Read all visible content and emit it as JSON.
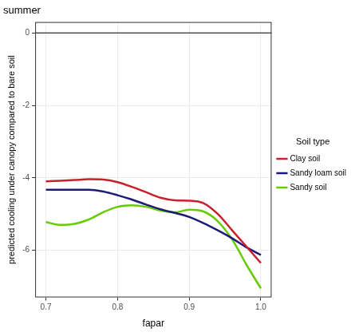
{
  "chart_data": {
    "type": "line",
    "title": "summer",
    "x_label": "fapar",
    "y_label": "predicted cooling under canopy compared to bare soil",
    "legend_title": "Soil type",
    "legend": "right",
    "grid": true,
    "hline": 0,
    "x": [
      0.7,
      0.72,
      0.74,
      0.76,
      0.78,
      0.8,
      0.82,
      0.84,
      0.86,
      0.88,
      0.9,
      0.92,
      0.94,
      0.96,
      0.98,
      1.0
    ],
    "series": [
      {
        "name": "Clay soil",
        "color": "#c8202c",
        "values": [
          -4.1,
          -4.08,
          -4.06,
          -4.04,
          -4.05,
          -4.12,
          -4.25,
          -4.4,
          -4.55,
          -4.62,
          -4.63,
          -4.7,
          -5.0,
          -5.45,
          -5.9,
          -6.35
        ]
      },
      {
        "name": "Sandy loam soil",
        "color": "#1c1c78",
        "values": [
          -4.33,
          -4.33,
          -4.33,
          -4.33,
          -4.38,
          -4.48,
          -4.6,
          -4.74,
          -4.87,
          -4.97,
          -5.08,
          -5.25,
          -5.45,
          -5.67,
          -5.92,
          -6.13
        ]
      },
      {
        "name": "Sandy soil",
        "color": "#66cc00",
        "values": [
          -5.22,
          -5.3,
          -5.27,
          -5.15,
          -4.95,
          -4.8,
          -4.76,
          -4.8,
          -4.9,
          -4.95,
          -4.88,
          -4.93,
          -5.2,
          -5.7,
          -6.4,
          -7.05
        ]
      }
    ],
    "xlim": [
      0.685,
      1.015
    ],
    "xticks": [
      0.7,
      0.8,
      0.9,
      {
        "value": 1,
        "label": "1.0"
      }
    ],
    "ylim": [
      -7.3,
      0.3
    ],
    "yticks": [
      -6,
      -4,
      -2,
      0
    ]
  }
}
